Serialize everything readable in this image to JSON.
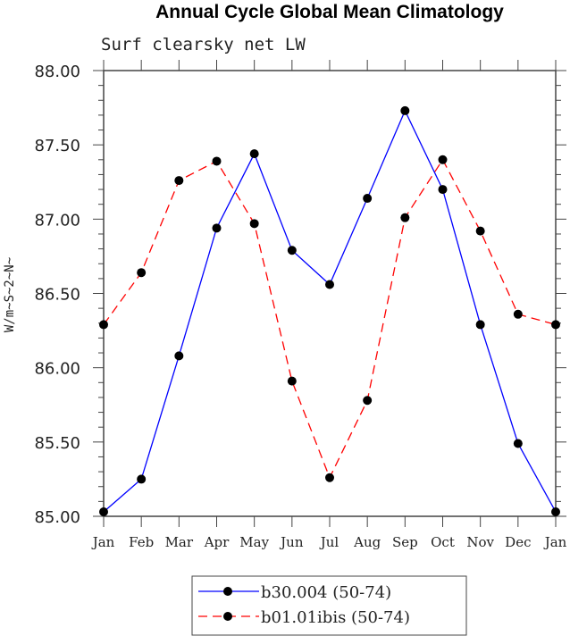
{
  "chart_data": {
    "type": "line",
    "title": "Annual Cycle Global Mean Climatology",
    "subtitle": "Surf clearsky net LW",
    "xlabel": "",
    "ylabel": "W/m~S~2~N~",
    "categories": [
      "Jan",
      "Feb",
      "Mar",
      "Apr",
      "May",
      "Jun",
      "Jul",
      "Aug",
      "Sep",
      "Oct",
      "Nov",
      "Dec",
      "Jan"
    ],
    "ylim": [
      85.0,
      88.0
    ],
    "yticks": [
      "85.00",
      "85.50",
      "86.00",
      "86.50",
      "87.00",
      "87.50",
      "88.00"
    ],
    "grid": false,
    "legend_position": "bottom-center",
    "series": [
      {
        "name": "b30.004 (50-74)",
        "color": "#0000ff",
        "dash": "solid",
        "values": [
          85.03,
          85.25,
          86.08,
          86.94,
          87.44,
          86.79,
          86.56,
          87.14,
          87.73,
          87.2,
          86.29,
          85.49,
          85.03
        ]
      },
      {
        "name": "b01.01ibis (50-74)",
        "color": "#ff0000",
        "dash": "dashed",
        "values": [
          86.29,
          86.64,
          87.26,
          87.39,
          86.97,
          85.91,
          85.26,
          85.78,
          87.01,
          87.4,
          86.92,
          86.36,
          86.29
        ]
      }
    ]
  }
}
